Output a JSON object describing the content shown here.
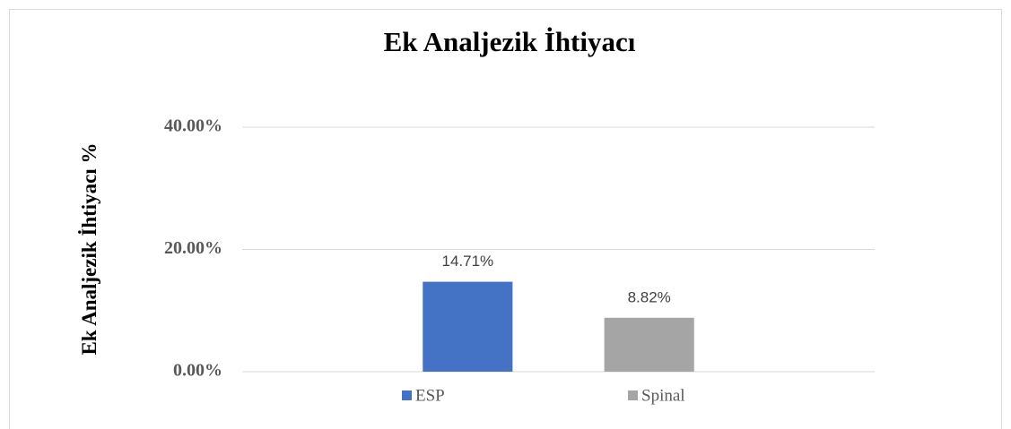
{
  "chart_data": {
    "type": "bar",
    "title": "Ek Analjezik İhtiyacı",
    "ylabel": "Ek Analjezik İhtiyacı %",
    "categories": [
      null
    ],
    "series": [
      {
        "name": "ESP",
        "color": "#4472c4",
        "values": [
          14.71
        ],
        "value_labels": [
          "14.71%"
        ]
      },
      {
        "name": "Spinal",
        "color": "#a5a5a5",
        "values": [
          8.82
        ],
        "value_labels": [
          "8.82%"
        ]
      }
    ],
    "ylim": [
      0,
      40
    ],
    "yticks": [
      {
        "value": 0,
        "label": "0.00%"
      },
      {
        "value": 20,
        "label": "20.00%"
      },
      {
        "value": 40,
        "label": "40.00%"
      }
    ],
    "grid": true,
    "legend": "bottom"
  }
}
